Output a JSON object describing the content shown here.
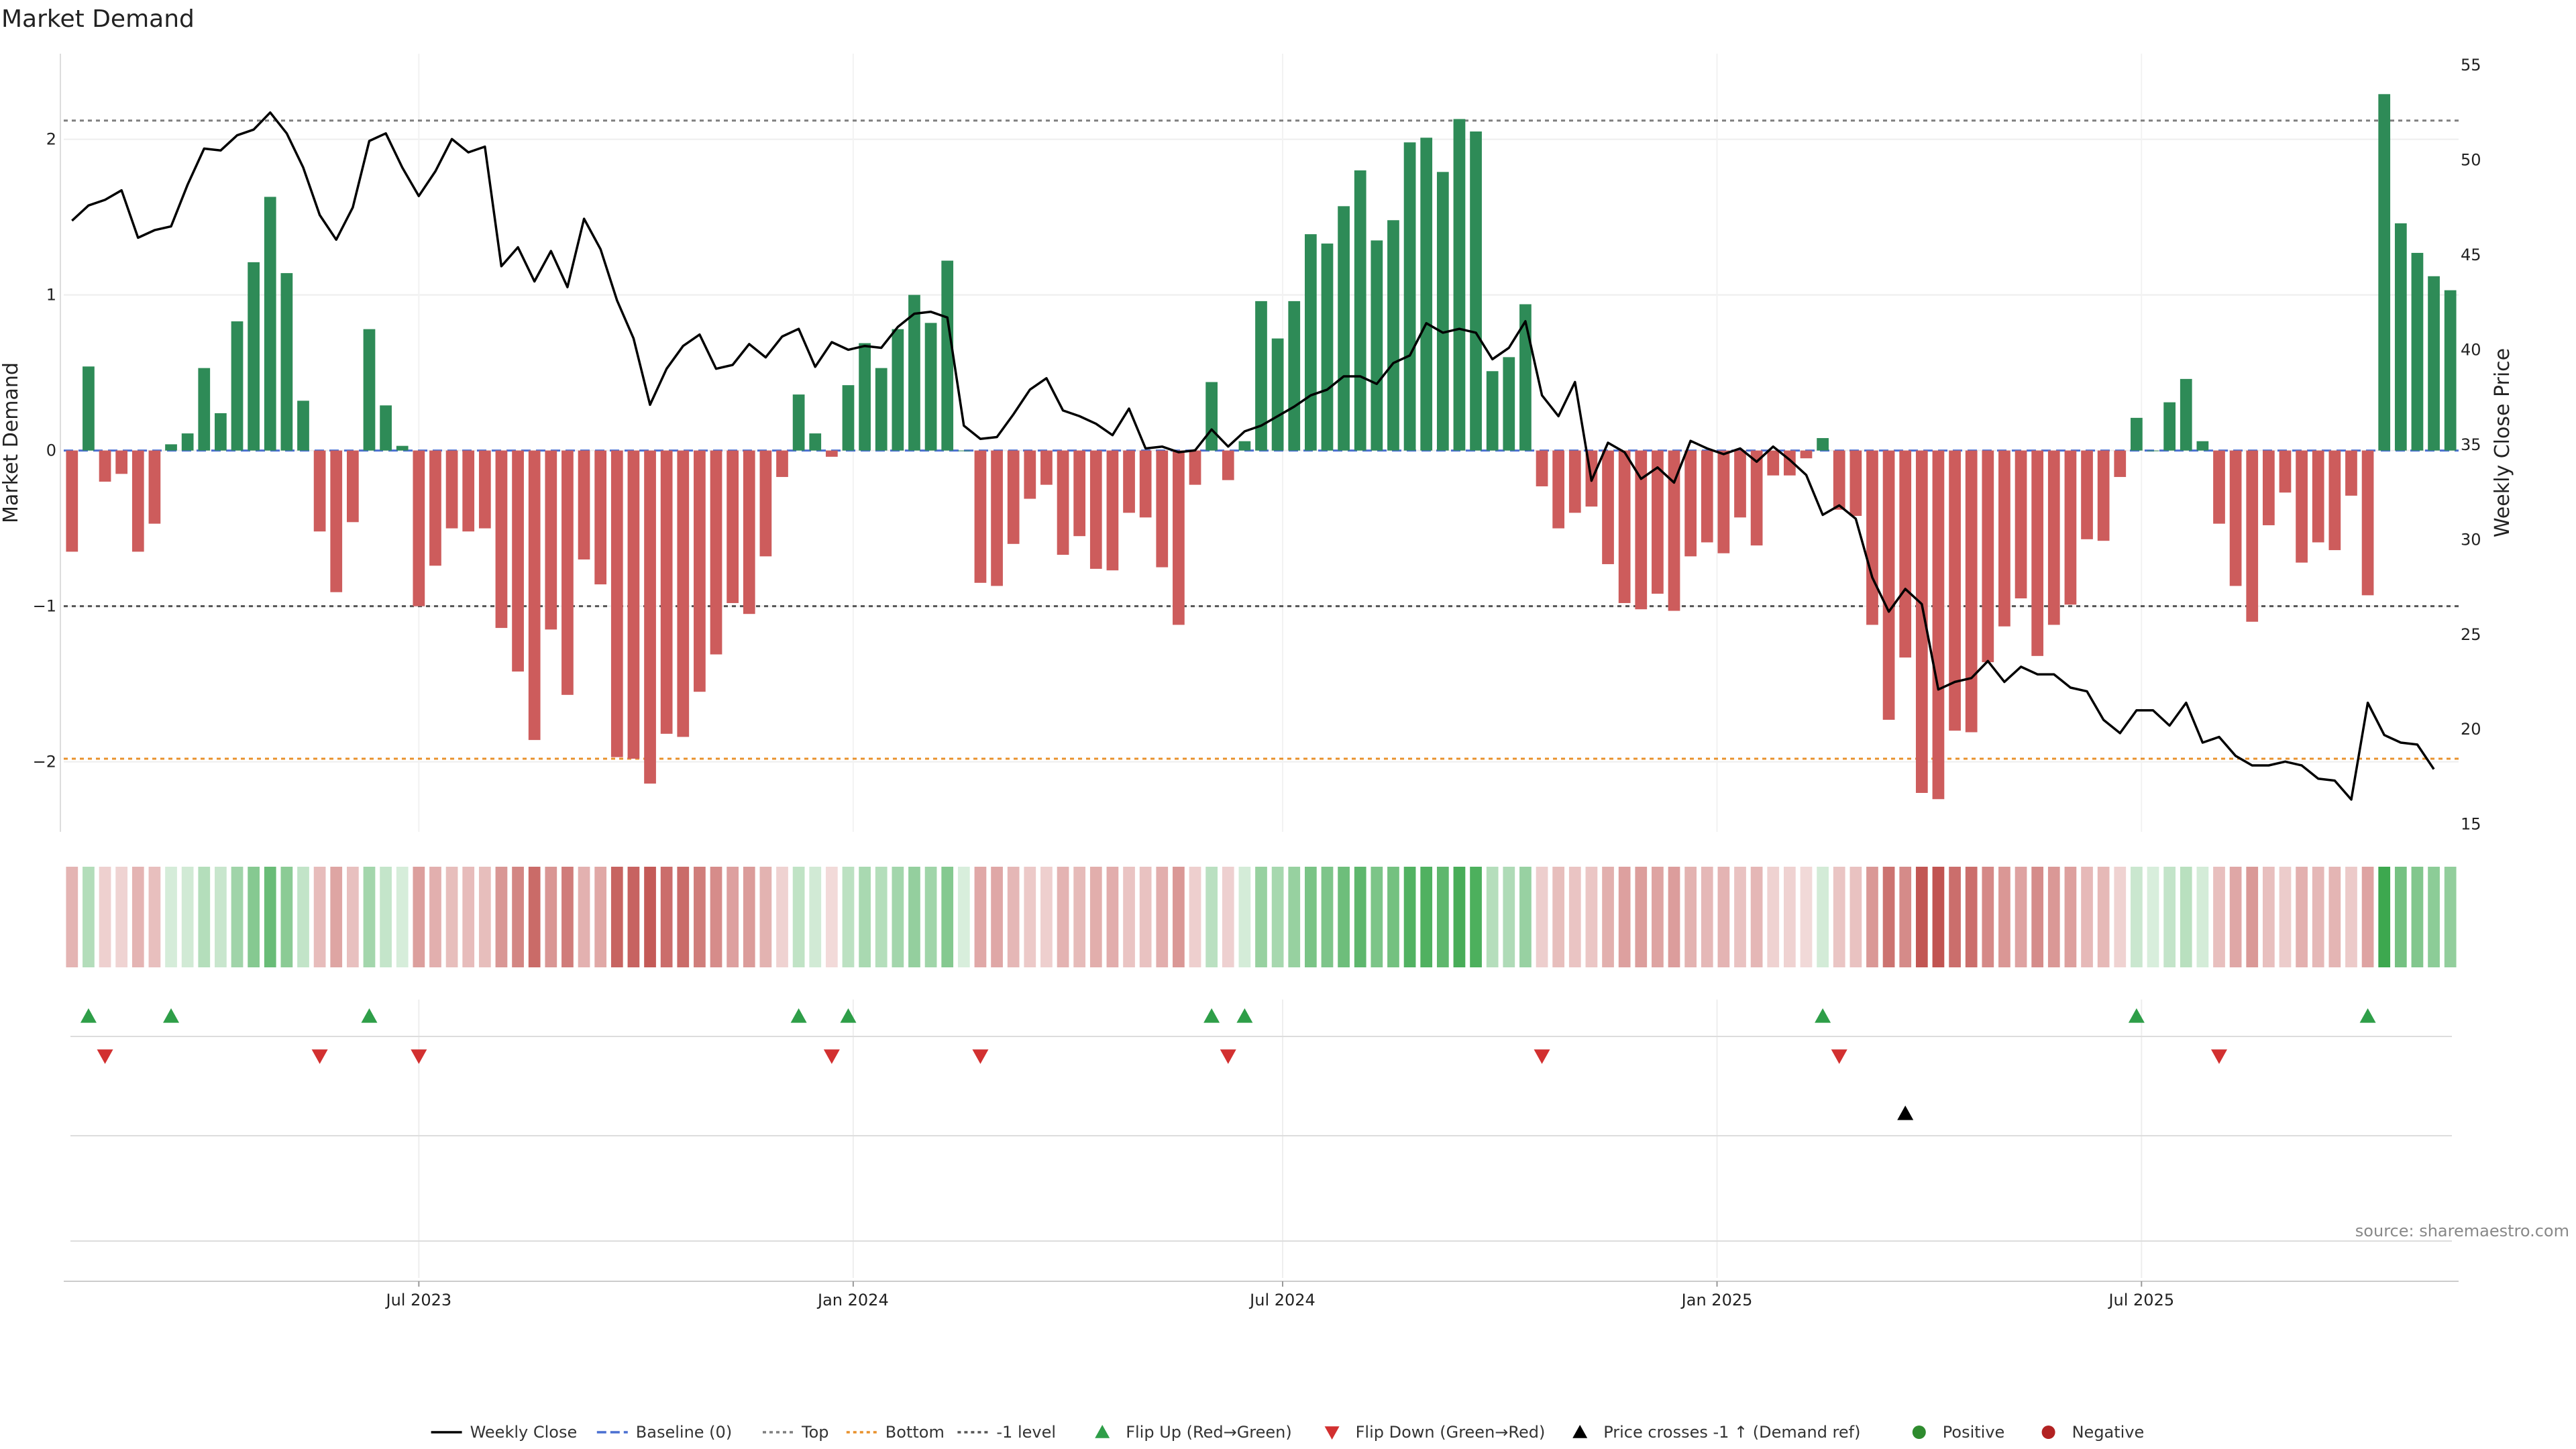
{
  "chart_data": {
    "type": "bar",
    "title": "Market Demand",
    "ylabel_left": "Market Demand",
    "ylabel_right": "Weekly Close Price",
    "ylim_left": [
      -2.45,
      2.55
    ],
    "ylim_right": [
      14.6,
      55.6
    ],
    "yticks_left": [
      2,
      1,
      0,
      -1,
      -2
    ],
    "yticks_left_labels": [
      "2",
      "1",
      "0",
      "−1",
      "−2"
    ],
    "yticks_right": [
      55,
      50,
      45,
      40,
      35,
      30,
      25,
      20,
      15
    ],
    "x_ticks": [
      {
        "week": 21.5,
        "label": "Jul 2023"
      },
      {
        "week": 47.8,
        "label": "Jan 2024"
      },
      {
        "week": 73.8,
        "label": "Jul 2024"
      },
      {
        "week": 100.1,
        "label": "Jan 2025"
      },
      {
        "week": 125.8,
        "label": "Jul 2025"
      }
    ],
    "reference_lines": [
      {
        "name": "Top",
        "value": 2.12,
        "color": "#7f7f7f",
        "style": "dotted"
      },
      {
        "name": "-1 level",
        "value": -1,
        "color": "#555555",
        "style": "dotted"
      },
      {
        "name": "Bottom",
        "value": -1.98,
        "color": "#e8912c",
        "style": "dotted"
      },
      {
        "name": "Baseline (0)",
        "value": 0,
        "color": "#4a6fd1",
        "style": "dashed"
      }
    ],
    "series": [
      {
        "name": "Market Demand",
        "kind": "bar",
        "values": [
          -0.65,
          0.54,
          -0.2,
          -0.15,
          -0.65,
          -0.47,
          0.04,
          0.11,
          0.53,
          0.24,
          0.83,
          1.21,
          1.63,
          1.14,
          0.32,
          -0.52,
          -0.91,
          -0.46,
          0.78,
          0.29,
          0.03,
          -1.0,
          -0.74,
          -0.5,
          -0.52,
          -0.5,
          -1.14,
          -1.42,
          -1.86,
          -1.15,
          -1.57,
          -0.7,
          -0.86,
          -1.97,
          -1.98,
          -2.14,
          -1.82,
          -1.84,
          -1.55,
          -1.31,
          -0.98,
          -1.05,
          -0.68,
          -0.17,
          0.36,
          0.11,
          -0.04,
          0.42,
          0.69,
          0.53,
          0.78,
          1.0,
          0.82,
          1.22,
          0.0,
          -0.85,
          -0.87,
          -0.6,
          -0.31,
          -0.22,
          -0.67,
          -0.55,
          -0.76,
          -0.77,
          -0.4,
          -0.43,
          -0.75,
          -1.12,
          -0.22,
          0.44,
          -0.19,
          0.06,
          0.96,
          0.72,
          0.96,
          1.39,
          1.33,
          1.57,
          1.8,
          1.35,
          1.48,
          1.98,
          2.01,
          1.79,
          2.13,
          2.05,
          0.51,
          0.6,
          0.94,
          -0.23,
          -0.5,
          -0.4,
          -0.36,
          -0.73,
          -0.98,
          -1.02,
          -0.92,
          -1.03,
          -0.68,
          -0.59,
          -0.66,
          -0.43,
          -0.61,
          -0.16,
          -0.16,
          -0.05,
          0.08,
          -0.38,
          -0.42,
          -1.12,
          -1.73,
          -1.33,
          -2.2,
          -2.24,
          -1.8,
          -1.81,
          -1.36,
          -1.13,
          -0.95,
          -1.32,
          -1.12,
          -0.99,
          -0.57,
          -0.58,
          -0.17,
          0.21,
          0.0,
          0.31,
          0.46,
          0.06,
          -0.47,
          -0.87,
          -1.1,
          -0.48,
          -0.27,
          -0.72,
          -0.59,
          -0.64,
          -0.29,
          -0.93,
          2.29,
          1.46,
          1.27,
          1.12,
          1.03
        ]
      },
      {
        "name": "Weekly Close",
        "kind": "line",
        "color": "#000000",
        "values": [
          46.8,
          47.6,
          47.9,
          48.4,
          45.9,
          46.3,
          46.5,
          48.7,
          50.6,
          50.5,
          51.3,
          51.6,
          52.5,
          51.4,
          49.6,
          47.1,
          45.8,
          47.5,
          51.0,
          51.4,
          49.6,
          48.1,
          49.4,
          51.1,
          50.4,
          50.7,
          44.4,
          45.4,
          43.6,
          45.2,
          43.3,
          46.9,
          45.3,
          42.6,
          40.6,
          37.1,
          39.0,
          40.2,
          40.8,
          39.0,
          39.2,
          40.3,
          39.6,
          40.7,
          41.1,
          39.1,
          40.4,
          40.0,
          40.2,
          40.1,
          41.2,
          41.9,
          42.0,
          41.7,
          36.0,
          35.3,
          35.4,
          36.6,
          37.9,
          38.5,
          36.8,
          36.5,
          36.1,
          35.5,
          36.9,
          34.8,
          34.9,
          34.6,
          34.7,
          35.8,
          34.9,
          35.7,
          36.0,
          36.5,
          37.0,
          37.6,
          37.9,
          38.6,
          38.6,
          38.2,
          39.3,
          39.7,
          41.4,
          40.9,
          41.1,
          40.9,
          39.5,
          40.1,
          41.5,
          37.6,
          36.5,
          38.3,
          33.1,
          35.1,
          34.6,
          33.2,
          33.8,
          33.0,
          35.2,
          34.8,
          34.5,
          34.8,
          34.1,
          34.9,
          34.2,
          33.4,
          31.3,
          31.8,
          31.1,
          28.0,
          26.2,
          27.4,
          26.6,
          22.1,
          22.5,
          22.7,
          23.6,
          22.5,
          23.3,
          22.9,
          22.9,
          22.2,
          22.0,
          20.5,
          19.8,
          21.0,
          21.0,
          20.2,
          21.4,
          19.3,
          19.6,
          18.6,
          18.1,
          18.1,
          18.3,
          18.1,
          17.4,
          17.3,
          16.3,
          21.4,
          19.7,
          19.3,
          19.2,
          17.9
        ]
      }
    ],
    "demand_strip": {
      "description": "heat strip of demand values per week (green positive, red negative)"
    },
    "events": {
      "flip_up_weeks": [
        1.5,
        6.5,
        18.5,
        44.5,
        47.5,
        69.5,
        71.5,
        106.5,
        125.5,
        139.5
      ],
      "flip_down_weeks": [
        2.5,
        15.5,
        21.5,
        46.5,
        55.5,
        70.5,
        89.5,
        107.5,
        130.5
      ],
      "price_cross_weeks": [
        111.5
      ]
    },
    "colors": {
      "positive": "#2e8b57",
      "negative": "#cd5c5c",
      "price_line": "#000000",
      "flip_up": "#2e9e48",
      "flip_down": "#d23030",
      "cross": "#000000"
    },
    "source": "source: sharemaestro.com",
    "legend": [
      {
        "label": "Weekly Close",
        "kind": "line",
        "color": "#000000"
      },
      {
        "label": "Baseline (0)",
        "kind": "dashed",
        "color": "#4a6fd1"
      },
      {
        "label": "Top",
        "kind": "dotted",
        "color": "#7f7f7f"
      },
      {
        "label": "Bottom",
        "kind": "dotted",
        "color": "#e8912c"
      },
      {
        "label": "-1 level",
        "kind": "dotted",
        "color": "#555555"
      },
      {
        "label": "Flip Up (Red→Green)",
        "kind": "tri-up",
        "color": "#2e9e48"
      },
      {
        "label": "Flip Down (Green→Red)",
        "kind": "tri-down",
        "color": "#d23030"
      },
      {
        "label": "Price crosses -1 ↑ (Demand ref)",
        "kind": "tri-up",
        "color": "#000000"
      },
      {
        "label": "Positive",
        "kind": "dot",
        "color": "#2e8b2e"
      },
      {
        "label": "Negative",
        "kind": "dot",
        "color": "#b22222"
      }
    ]
  }
}
